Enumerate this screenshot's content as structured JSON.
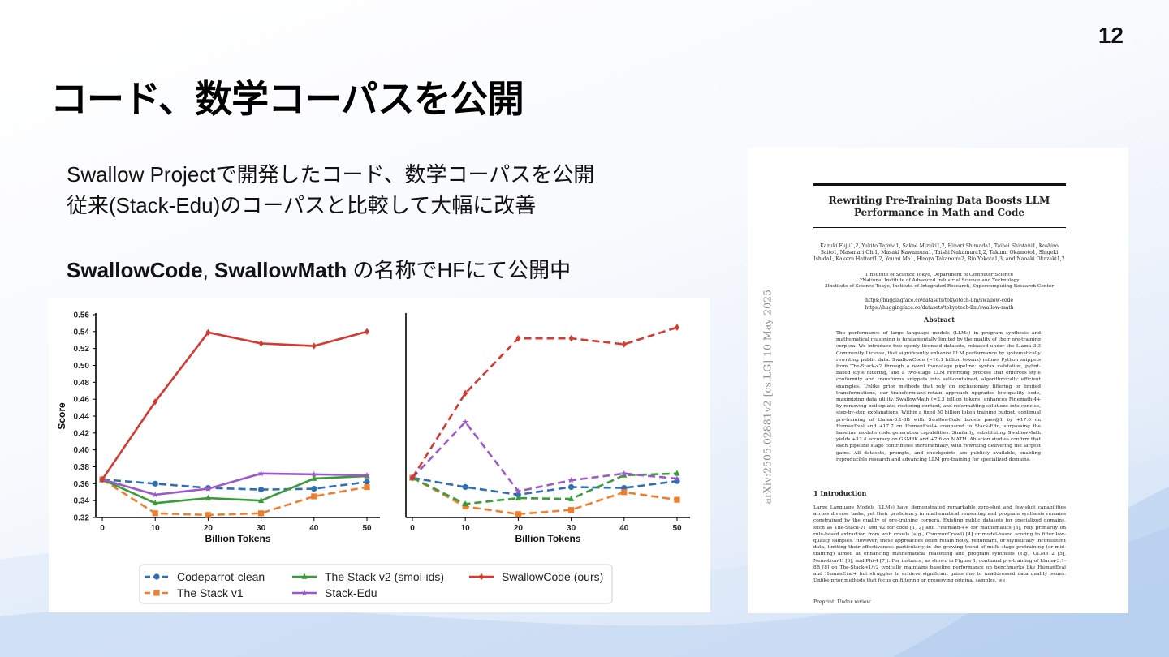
{
  "slide": {
    "page_number": "12",
    "title": "コード、数学コーパスを公開",
    "bullets": [
      "Swallow Projectで開発したコード、数学コーパスを公開",
      "従来(Stack-Edu)のコーパスと比較して大幅に改善"
    ],
    "release_line": {
      "name1": "SwallowCode",
      "sep": ", ",
      "name2": "SwallowMath",
      "suffix": " の名称でHFにて公開中"
    }
  },
  "chart_data": [
    {
      "type": "line",
      "title": "",
      "xlabel": "Billion Tokens",
      "ylabel": "Score",
      "x": [
        0,
        10,
        20,
        30,
        40,
        50
      ],
      "ylim": [
        0.32,
        0.56
      ],
      "yticks": [
        "0.32",
        "0.34",
        "0.36",
        "0.38",
        "0.40",
        "0.42",
        "0.44",
        "0.46",
        "0.48",
        "0.50",
        "0.52",
        "0.54",
        "0.56"
      ],
      "xticks": [
        "0",
        "10",
        "20",
        "30",
        "40",
        "50"
      ],
      "series": [
        {
          "name": "Codeparrot-clean",
          "color": "#2f6eb5",
          "dash": true,
          "marker": "circle",
          "values": [
            0.365,
            0.36,
            0.355,
            0.353,
            0.354,
            0.362
          ]
        },
        {
          "name": "The Stack v1",
          "color": "#f07f2d",
          "dash": true,
          "marker": "square",
          "values": [
            0.365,
            0.325,
            0.323,
            0.325,
            0.345,
            0.356
          ]
        },
        {
          "name": "The Stack v2 (smol-ids)",
          "color": "#3a9b3a",
          "dash": false,
          "marker": "triangle",
          "values": [
            0.365,
            0.337,
            0.343,
            0.34,
            0.366,
            0.369
          ]
        },
        {
          "name": "Stack-Edu",
          "color": "#9b59c9",
          "dash": false,
          "marker": "star",
          "values": [
            0.365,
            0.347,
            0.354,
            0.372,
            0.371,
            0.37
          ]
        },
        {
          "name": "SwallowCode (ours)",
          "color": "#d23a32",
          "dash": false,
          "marker": "diamond",
          "values": [
            0.365,
            0.457,
            0.539,
            0.526,
            0.523,
            0.54
          ]
        }
      ]
    },
    {
      "type": "line",
      "title": "",
      "xlabel": "Billion Tokens",
      "ylabel": "",
      "x": [
        0,
        10,
        20,
        30,
        40,
        50
      ],
      "ylim": [
        0.32,
        0.56
      ],
      "xticks": [
        "0",
        "10",
        "20",
        "30",
        "40",
        "50"
      ],
      "series": [
        {
          "name": "Codeparrot-clean",
          "color": "#2f6eb5",
          "dash": true,
          "marker": "circle",
          "values": [
            0.367,
            0.356,
            0.347,
            0.356,
            0.355,
            0.363
          ]
        },
        {
          "name": "The Stack v1",
          "color": "#f07f2d",
          "dash": true,
          "marker": "square",
          "values": [
            0.367,
            0.333,
            0.324,
            0.329,
            0.35,
            0.341
          ]
        },
        {
          "name": "The Stack v2 (smol-ids)",
          "color": "#3a9b3a",
          "dash": true,
          "marker": "triangle",
          "values": [
            0.367,
            0.336,
            0.343,
            0.342,
            0.37,
            0.372
          ]
        },
        {
          "name": "Stack-Edu",
          "color": "#9b59c9",
          "dash": true,
          "marker": "star",
          "values": [
            0.367,
            0.433,
            0.351,
            0.364,
            0.372,
            0.366
          ]
        },
        {
          "name": "SwallowCode (ours)",
          "color": "#d23a32",
          "dash": true,
          "marker": "diamond",
          "values": [
            0.367,
            0.467,
            0.532,
            0.532,
            0.525,
            0.545
          ]
        }
      ]
    }
  ],
  "paper": {
    "title_line1": "Rewriting Pre-Training Data Boosts LLM",
    "title_line2": "Performance in Math and Code",
    "authors": "Kazuki Fujii1,2, Yukito Tajima1, Sakae Mizuki1,2, Hinari Shimada1, Taihei Shiotani1, Koshiro Saito1, Masanari Ohi1, Masaki Kawamura1, Taishi Nakamura1,2, Takumi Okamoto1, Shigeki Ishida1, Kakeru Hattori1,2, Youmi Ma1, Hiroya Takamura2, Rio Yokota1,3, and Naoaki Okazaki1,2",
    "affil1": "1Institute of Science Tokyo, Department of Computer Science",
    "affil2": "2National Institute of Advanced Industrial Science and Technology",
    "affil3": "3Institute of Science Tokyo, Institute of Integrated Research, Supercomputing Research Center",
    "link1": "https://huggingface.co/datasets/tokyotech-llm/swallow-code",
    "link2": "https://huggingface.co/datasets/tokyotech-llm/swallow-math",
    "abstract_heading": "Abstract",
    "abstract": "The performance of large language models (LLMs) in program synthesis and mathematical reasoning is fundamentally limited by the quality of their pre-training corpora. We introduce two openly licensed datasets, released under the Llama 3.3 Community License, that significantly enhance LLM performance by systematically rewriting public data. SwallowCode (≈16.1 billion tokens) refines Python snippets from The-Stack-v2 through a novel four-stage pipeline: syntax validation, pylint-based style filtering, and a two-stage LLM rewriting process that enforces style conformity and transforms snippets into self-contained, algorithmically efficient examples. Unlike prior methods that rely on exclusionary filtering or limited transformations, our transform-and-retain approach upgrades low-quality code, maximizing data utility. SwallowMath (≈2.3 billion tokens) enhances Finemath-4+ by removing boilerplate, restoring context, and reformatting solutions into concise, step-by-step explanations. Within a fixed 50 billion token training budget, continual pre-training of Llama-3.1-8B with SwallowCode boosts pass@1 by +17.0 on HumanEval and +17.7 on HumanEval+ compared to Stack-Edu, surpassing the baseline model's code generation capabilities. Similarly, substituting SwallowMath yields +12.4 accuracy on GSM8K and +7.6 on MATH. Ablation studies confirm that each pipeline stage contributes incrementally, with rewriting delivering the largest gains. All datasets, prompts, and checkpoints are publicly available, enabling reproducible research and advancing LLM pre-training for specialized domains.",
    "intro_heading": "1 Introduction",
    "intro": "Large Language Models (LLMs) have demonstrated remarkable zero-shot and few-shot capabilities across diverse tasks, yet their proficiency in mathematical reasoning and program synthesis remains constrained by the quality of pre-training corpora. Existing public datasets for specialized domains, such as The-Stack-v1 and v2 for code [1, 2] and Finemath-4+ for mathematics [3], rely primarily on rule-based extraction from web crawls (e.g., CommonCrawl) [4] or model-based scoring to filter low-quality samples. However, these approaches often retain noisy, redundant, or stylistically inconsistent data, limiting their effectiveness–particularly in the growing trend of multi-stage pretraining (or mid-training) aimed at enhancing mathematical reasoning and program synthesis (e.g., OLMo 2 [5], Nemotron-H [6], and Phi-4 [7]). For instance, as shown in Figure 1, continual pre-training of Llama-3.1-8B [8] on The-Stack-v1/v2 typically maintains baseline performance on benchmarks like HumanEval and HumanEval+ but struggles to achieve significant gains due to unaddressed data quality issues. Unlike prior methods that focus on filtering or preserving original samples, we",
    "preprint": "Preprint. Under review.",
    "arxiv_id": "arXiv:2505.02881v2  [cs.LG]  10 May 2025"
  }
}
